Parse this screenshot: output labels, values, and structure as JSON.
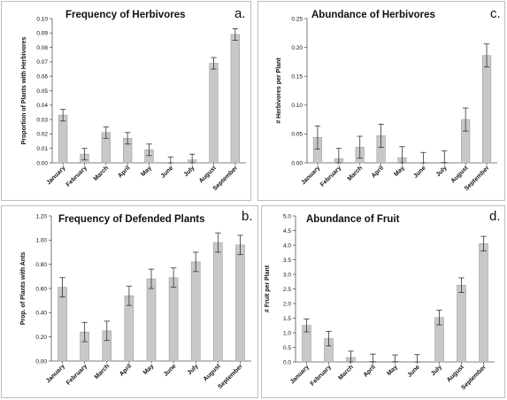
{
  "chart_data": [
    {
      "type": "bar",
      "title": "Frequency of Herbivores",
      "panel_label": "a.",
      "ylabel": "Proportion of Plants with Herbivores",
      "xlabel": "",
      "ylim": [
        0,
        0.1
      ],
      "yticks": [
        "0.00",
        "0.01",
        "0.02",
        "0.03",
        "0.04",
        "0.05",
        "0.06",
        "0.07",
        "0.08",
        "0.09",
        "0.10"
      ],
      "categories": [
        "January",
        "February",
        "March",
        "April",
        "May",
        "June",
        "July",
        "August",
        "September"
      ],
      "values": [
        0.033,
        0.006,
        0.021,
        0.017,
        0.009,
        0.0,
        0.002,
        0.069,
        0.089
      ],
      "errors": [
        0.004,
        0.004,
        0.004,
        0.004,
        0.004,
        0.004,
        0.004,
        0.004,
        0.004
      ],
      "bar_color": "#c8c8c8",
      "grid": false
    },
    {
      "type": "bar",
      "title": "Abundance of Herbivores",
      "panel_label": "c.",
      "ylabel": "# Herbivores per Plant",
      "xlabel": "",
      "ylim": [
        0,
        0.25
      ],
      "yticks": [
        "0.00",
        "0.05",
        "0.10",
        "0.15",
        "0.20",
        "0.25"
      ],
      "categories": [
        "January",
        "February",
        "March",
        "April",
        "May",
        "June",
        "July",
        "August",
        "September"
      ],
      "values": [
        0.044,
        0.007,
        0.027,
        0.047,
        0.009,
        0.0,
        0.001,
        0.075,
        0.186
      ],
      "errors": [
        0.02,
        0.018,
        0.019,
        0.02,
        0.019,
        0.018,
        0.02,
        0.02,
        0.02
      ],
      "bar_color": "#c8c8c8",
      "grid": false
    },
    {
      "type": "bar",
      "title": "Frequency of Defended Plants",
      "panel_label": "b.",
      "ylabel": "Prop. of Plants with Ants",
      "xlabel": "",
      "ylim": [
        0,
        1.2
      ],
      "yticks": [
        "0.00",
        "0.20",
        "0.40",
        "0.60",
        "0.80",
        "1.00",
        "1.20"
      ],
      "categories": [
        "January",
        "February",
        "March",
        "April",
        "May",
        "June",
        "July",
        "August",
        "September"
      ],
      "values": [
        0.61,
        0.24,
        0.25,
        0.54,
        0.68,
        0.69,
        0.82,
        0.98,
        0.96
      ],
      "errors": [
        0.08,
        0.08,
        0.08,
        0.08,
        0.08,
        0.08,
        0.08,
        0.08,
        0.08
      ],
      "bar_color": "#c8c8c8",
      "grid": false
    },
    {
      "type": "bar",
      "title": "Abundance of Fruit",
      "panel_label": "d.",
      "ylabel": "# Fruit per Plant",
      "xlabel": "",
      "ylim": [
        0,
        5.0
      ],
      "yticks": [
        "0.0",
        "0.5",
        "1.0",
        "1.5",
        "2.0",
        "2.5",
        "3.0",
        "3.5",
        "4.0",
        "4.5",
        "5.0"
      ],
      "categories": [
        "January",
        "February",
        "March",
        "April",
        "May",
        "June",
        "July",
        "August",
        "September"
      ],
      "values": [
        1.25,
        0.8,
        0.15,
        0.02,
        0.02,
        0.0,
        1.52,
        2.63,
        4.05
      ],
      "errors": [
        0.22,
        0.25,
        0.22,
        0.25,
        0.22,
        0.25,
        0.25,
        0.25,
        0.25
      ],
      "bar_color": "#c8c8c8",
      "grid": false
    }
  ]
}
